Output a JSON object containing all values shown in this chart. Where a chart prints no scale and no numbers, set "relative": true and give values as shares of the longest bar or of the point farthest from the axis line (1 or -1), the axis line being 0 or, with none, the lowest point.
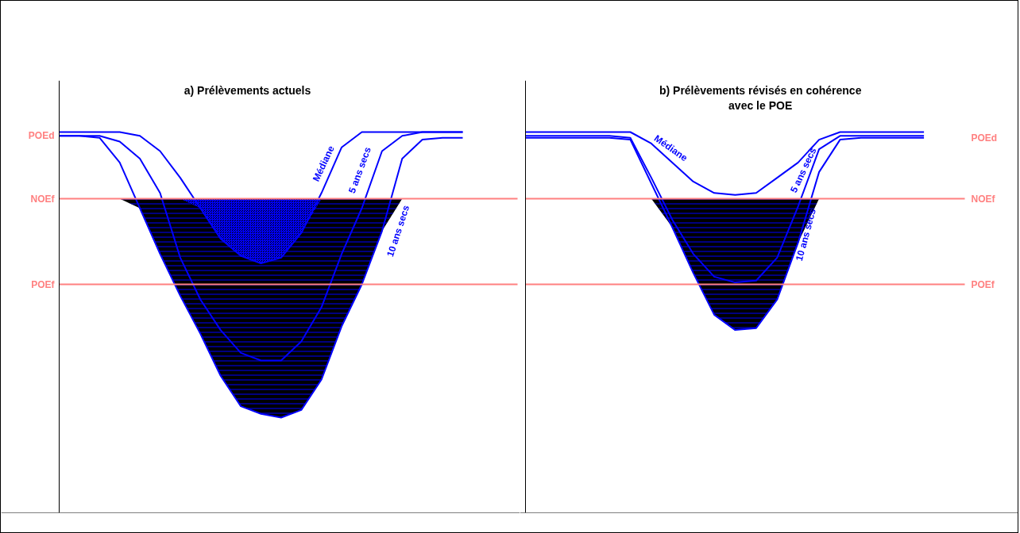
{
  "chart_data": [
    {
      "type": "line",
      "relative": true,
      "title": "a) Prélèvements actuels",
      "categories": [
        null,
        null,
        null,
        null,
        null,
        null,
        null,
        null,
        null,
        null,
        null,
        null,
        null,
        null,
        null,
        null,
        null,
        null,
        null,
        null,
        null
      ],
      "marker": "none",
      "line_style": "solid",
      "series": [
        {
          "name": "Médiane",
          "color": "#0000ff",
          "values": [
            1.0,
            1.0,
            1.0,
            1.0,
            0.99,
            0.95,
            0.88,
            0.8,
            0.72,
            0.675,
            0.655,
            0.67,
            0.735,
            0.84,
            0.96,
            1.0,
            1.0,
            1.0,
            1.0,
            1.0,
            1.0
          ],
          "lower": [
            null,
            null,
            null,
            null,
            null,
            null,
            0.825,
            0.8,
            0.72,
            0.675,
            0.655,
            0.67,
            0.735,
            0.825,
            null,
            null,
            null,
            null,
            null,
            null,
            null
          ],
          "upper": [
            null,
            null,
            null,
            null,
            null,
            null,
            0.825,
            0.825,
            0.825,
            0.825,
            0.825,
            0.825,
            0.825,
            0.825,
            null,
            null,
            null,
            null,
            null,
            null,
            null
          ]
        },
        {
          "name": "5 ans secs",
          "color": "#0000ff",
          "values": [
            0.99,
            0.99,
            0.99,
            0.975,
            0.93,
            0.84,
            0.67,
            0.56,
            0.48,
            0.42,
            0.4,
            0.4,
            0.45,
            0.54,
            0.68,
            0.8,
            0.95,
            0.99,
            1.0,
            1.0,
            1.0
          ]
        },
        {
          "name": "10 ans secs",
          "color": "#0000ff",
          "values": [
            0.99,
            0.99,
            0.985,
            0.92,
            0.8,
            0.68,
            0.57,
            0.47,
            0.36,
            0.28,
            0.26,
            0.25,
            0.27,
            0.35,
            0.49,
            0.6,
            0.74,
            0.93,
            0.98,
            0.985,
            0.985
          ],
          "lower": [
            null,
            null,
            null,
            0.825,
            0.8,
            0.68,
            0.57,
            0.47,
            0.36,
            0.28,
            0.26,
            0.25,
            0.27,
            0.35,
            0.49,
            0.6,
            0.74,
            0.825,
            null,
            null,
            null
          ],
          "upper": [
            null,
            null,
            null,
            0.825,
            0.825,
            0.825,
            0.825,
            0.825,
            0.825,
            0.825,
            0.825,
            0.825,
            0.825,
            0.825,
            0.825,
            0.825,
            0.825,
            0.825,
            null,
            null,
            null
          ]
        }
      ],
      "ref_lines": [
        {
          "axis": "y",
          "value": 0.825,
          "label": "NOEf",
          "color": "#ff8080"
        },
        {
          "axis": "y",
          "value": 0.6,
          "label": "POEf",
          "color": "#ff8080"
        }
      ],
      "annotations": [
        "POEd"
      ]
    },
    {
      "type": "line",
      "relative": true,
      "title": "b) Prélèvements révisés en cohérence\navec le POE",
      "categories": [
        null,
        null,
        null,
        null,
        null,
        null,
        null,
        null,
        null,
        null,
        null,
        null,
        null,
        null,
        null,
        null,
        null,
        null,
        null,
        null,
        null
      ],
      "marker": "none",
      "line_style": "solid",
      "series": [
        {
          "name": "Médiane",
          "color": "#0000ff",
          "values": [
            1.0,
            1.0,
            1.0,
            1.0,
            1.0,
            1.0,
            0.97,
            0.92,
            0.87,
            0.84,
            0.835,
            0.84,
            0.88,
            0.92,
            0.98,
            1.0,
            1.0,
            1.0,
            1.0,
            1.0,
            null
          ]
        },
        {
          "name": "5 ans secs",
          "color": "#0000ff",
          "values": [
            0.99,
            0.99,
            0.99,
            0.99,
            0.99,
            0.985,
            0.88,
            0.77,
            0.68,
            0.62,
            0.605,
            0.61,
            0.67,
            0.805,
            0.955,
            0.99,
            0.99,
            0.99,
            0.99,
            0.99,
            null
          ]
        },
        {
          "name": "10 ans secs",
          "color": "#0000ff",
          "values": [
            0.985,
            0.985,
            0.985,
            0.985,
            0.985,
            0.98,
            0.865,
            0.75,
            0.63,
            0.52,
            0.48,
            0.485,
            0.56,
            0.71,
            0.895,
            0.98,
            0.985,
            0.985,
            0.985,
            0.985,
            null
          ],
          "lower": [
            null,
            null,
            null,
            null,
            null,
            null,
            0.825,
            0.75,
            0.63,
            0.52,
            0.48,
            0.485,
            0.56,
            0.71,
            0.825,
            null,
            null,
            null,
            null,
            null,
            null
          ],
          "upper": [
            null,
            null,
            null,
            null,
            null,
            null,
            0.825,
            0.825,
            0.825,
            0.825,
            0.825,
            0.825,
            0.825,
            0.825,
            0.825,
            null,
            null,
            null,
            null,
            null,
            null
          ]
        }
      ],
      "ref_lines": [
        {
          "axis": "y",
          "value": 0.825,
          "label": "NOEf",
          "color": "#ff8080"
        },
        {
          "axis": "y",
          "value": 0.6,
          "label": "POEf",
          "color": "#ff8080"
        }
      ],
      "annotations": [
        "POEd"
      ]
    }
  ]
}
